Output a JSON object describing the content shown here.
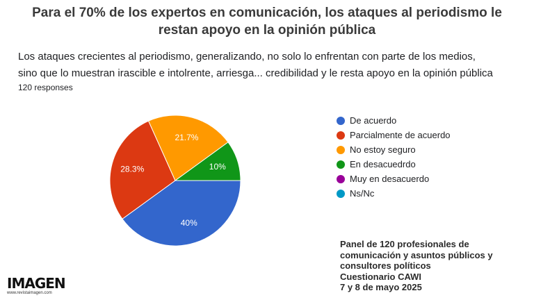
{
  "header": {
    "title_line1": "Para el 70% de los expertos en comunicación, los ataques al periodismo le",
    "title_line2": "restan apoyo en la opinión pública"
  },
  "question": {
    "line1": "Los ataques crecientes al periodismo, generalizando, no solo lo enfrentan con parte de los medios,",
    "line2": "sino que lo muestran irascible e intolrente, arriesga... credibilidad y le resta apoyo en la opinión pública"
  },
  "responses": "120 responses",
  "chart_data": {
    "type": "pie",
    "slices": [
      {
        "label": "De acuerdo",
        "value": 40,
        "display": "40%",
        "color": "#3366cc"
      },
      {
        "label": "Parcialmente de acuerdo",
        "value": 28.3,
        "display": "28.3%",
        "color": "#dc3912"
      },
      {
        "label": "No estoy seguro",
        "value": 21.7,
        "display": "21.7%",
        "color": "#ff9900"
      },
      {
        "label": "En desacuedrdo",
        "value": 10,
        "display": "10%",
        "color": "#109618"
      },
      {
        "label": "Muy en desacuerdo",
        "value": 0,
        "display": "",
        "color": "#990099"
      },
      {
        "label": "Ns/Nc",
        "value": 0,
        "display": "",
        "color": "#0099c6"
      }
    ],
    "legend_position": "right"
  },
  "panel": {
    "line1": "Panel de 120 profesionales de",
    "line2": "comunicación y asuntos públicos y",
    "line3": "consultores políticos",
    "line4": "Cuestionario CAWI",
    "line5": "7 y 8 de mayo 2025"
  },
  "logo": {
    "word": "IMAGEN",
    "url": "www.revistaimagen.com"
  }
}
